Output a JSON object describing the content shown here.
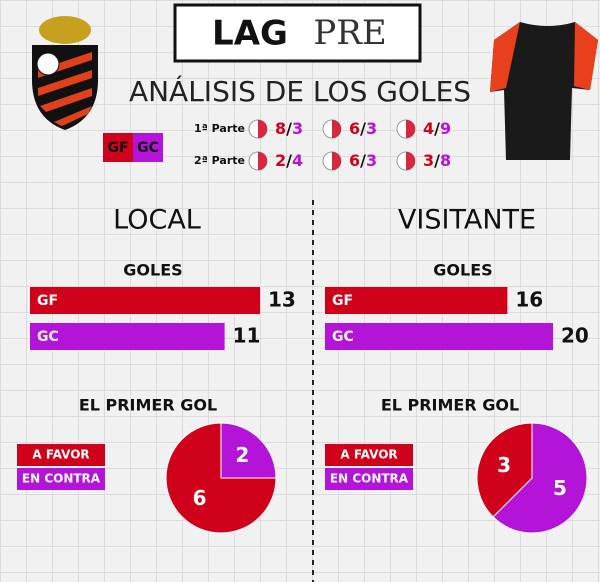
{
  "header": {
    "title_left": "LAG",
    "title_right": "PRE",
    "subtitle": "ANÁLISIS DE LOS GOLES"
  },
  "key": {
    "gf": {
      "label": "GF",
      "color": "#d0021b"
    },
    "gc": {
      "label": "GC",
      "color": "#b414d8"
    }
  },
  "separator": "/",
  "halves": [
    {
      "label": "1ª Parte",
      "scores": [
        {
          "gf": 8,
          "gc": 3
        },
        {
          "gf": 6,
          "gc": 3
        },
        {
          "gf": 4,
          "gc": 9
        }
      ]
    },
    {
      "label": "2ª Parte",
      "scores": [
        {
          "gf": 2,
          "gc": 4
        },
        {
          "gf": 6,
          "gc": 3
        },
        {
          "gf": 3,
          "gc": 8
        }
      ]
    }
  ],
  "sections": [
    {
      "title": "LOCAL",
      "goals_title": "GOLES",
      "bars": [
        {
          "label": "GF",
          "value": 13,
          "color": "#d0021b"
        },
        {
          "label": "GC",
          "value": 11,
          "color": "#b414d8"
        }
      ],
      "first_goal_title": "EL PRIMER GOL",
      "pie": [
        {
          "label": "A FAVOR",
          "value": 6,
          "color": "#d0021b"
        },
        {
          "label": "EN CONTRA",
          "value": 2,
          "color": "#b414d8"
        }
      ]
    },
    {
      "title": "VISITANTE",
      "goals_title": "GOLES",
      "bars": [
        {
          "label": "GF",
          "value": 16,
          "color": "#d0021b"
        },
        {
          "label": "GC",
          "value": 20,
          "color": "#b414d8"
        }
      ],
      "first_goal_title": "EL PRIMER GOL",
      "pie": [
        {
          "label": "A FAVOR",
          "value": 3,
          "color": "#d0021b"
        },
        {
          "label": "EN CONTRA",
          "value": 5,
          "color": "#b414d8"
        }
      ]
    }
  ]
}
